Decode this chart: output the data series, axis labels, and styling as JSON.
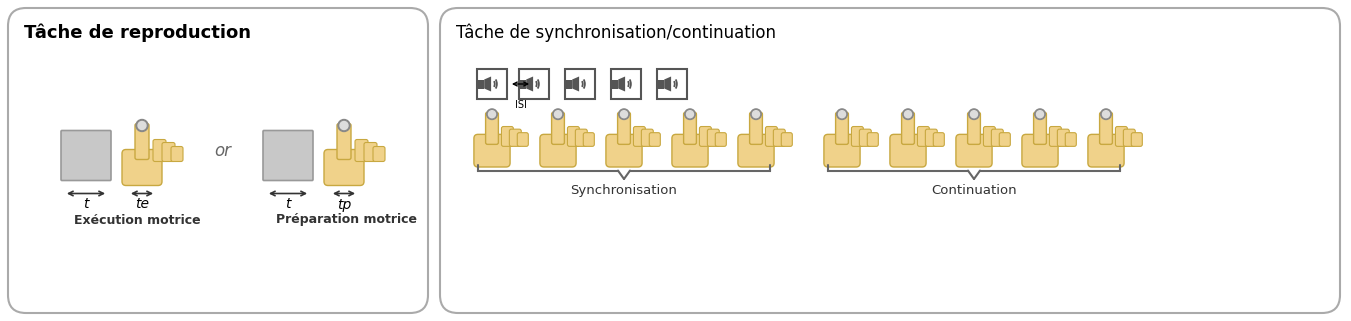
{
  "left_title": "Tâche de reproduction",
  "right_title": "Tâche de synchronisation/continuation",
  "left_label1": "Exécution motrice",
  "left_label2": "Préparation motrice",
  "or_text": "or",
  "t_label": "t",
  "te_label": "te",
  "tp_label": "tp",
  "sync_label": "Synchronisation",
  "cont_label": "Continuation",
  "ISI_label": "ISI",
  "bg_color": "#ffffff",
  "hand_fill": "#f0d28a",
  "hand_edge": "#c8a840",
  "hand_finger_fill": "#f0d28a",
  "fingertip_outer": "#888888",
  "fingertip_inner": "#dddddd",
  "square_fill": "#c8c8c8",
  "square_edge": "#999999",
  "panel_edge": "#aaaaaa",
  "brace_color": "#666666",
  "sound_edge": "#555555",
  "sound_fill": "#555555",
  "arrow_color": "#333333",
  "label_color": "#333333"
}
